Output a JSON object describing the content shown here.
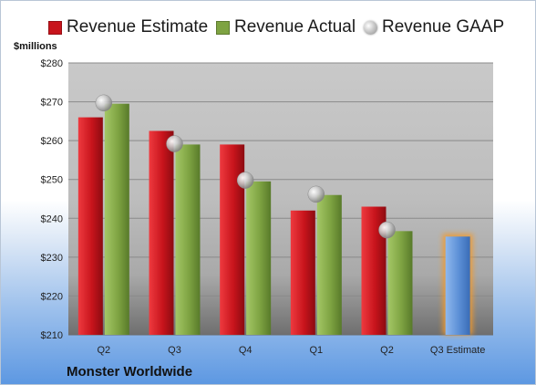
{
  "legend": {
    "estimate": "Revenue Estimate",
    "actual": "Revenue Actual",
    "gaap": "Revenue GAAP"
  },
  "unit_label": "$millions",
  "company": "Monster Worldwide",
  "colors": {
    "estimate": "#c8141c",
    "actual": "#7ea342",
    "forecast": "#5b8fd6",
    "gaap": "#b8b8b8"
  },
  "chart_data": {
    "type": "bar",
    "categories": [
      "Q2",
      "Q3",
      "Q4",
      "Q1",
      "Q2",
      "Q3 Estimate"
    ],
    "series": [
      {
        "name": "Revenue Estimate",
        "values": [
          266,
          262.5,
          259,
          242,
          243,
          null
        ]
      },
      {
        "name": "Revenue Actual",
        "values": [
          269.5,
          259,
          249.5,
          246,
          236.7,
          null
        ]
      },
      {
        "name": "Revenue GAAP",
        "values": [
          269.7,
          259.2,
          249.8,
          246.2,
          237,
          null
        ]
      }
    ],
    "forecast": {
      "category": "Q3 Estimate",
      "value": 235.3
    },
    "yticks": [
      "$210",
      "$220",
      "$230",
      "$240",
      "$250",
      "$260",
      "$270",
      "$280"
    ],
    "ylim": [
      210,
      280
    ],
    "grid": true,
    "legend_position": "top"
  }
}
